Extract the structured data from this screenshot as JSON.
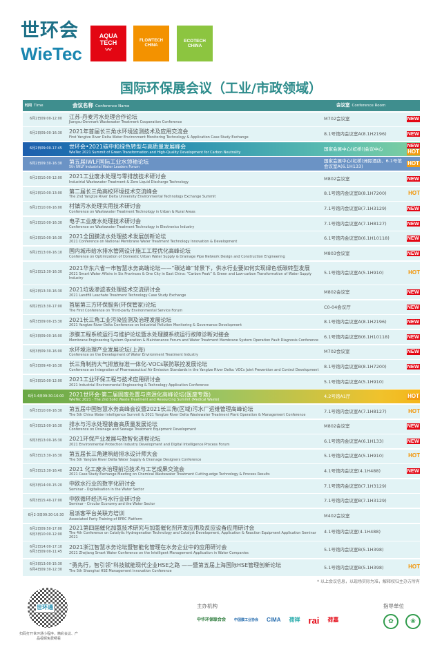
{
  "header": {
    "logo_cn": "世环会",
    "logo_en": "WieTec",
    "brands": [
      {
        "line1": "AQUA",
        "line2": "TECH",
        "color": "#e30613"
      },
      {
        "line1": "FLOWTECH",
        "line2": "CHINA",
        "color": "#f39200"
      },
      {
        "line1": "ECOTECH",
        "line2": "CHINA",
        "color": "#8cc540"
      }
    ]
  },
  "title": "国际环保展会议（工业/市政领域）",
  "columns": {
    "time_cn": "时间",
    "time_en": "Time",
    "name_cn": "会议名称",
    "name_en": "Conference Name",
    "room_cn": "会议室",
    "room_en": "Conference Room"
  },
  "badges": {
    "new": "NEW",
    "hot": "HOT"
  },
  "rows": [
    {
      "time": [
        "6月2日09:00-12:00"
      ],
      "cn": "江苏-丹麦污水处理合作论坛",
      "en": "Jiangsu-Denmark Wastewater Treatment Cooperation Conference",
      "room": "M702会议室",
      "badges": [
        "new"
      ]
    },
    {
      "time": [
        "6月2日09:00-16:30"
      ],
      "cn": "2021年首届长三角水环境监测技术及应用交流会",
      "en": "First Yangtze River Delta Water Environment Monitoring Technology & Application Case Study Exchange",
      "room": "8.1号馆内会议室A(8.1H2196)",
      "badges": [
        "new"
      ]
    },
    {
      "time": [
        "6月2日09:00-17:45"
      ],
      "cn": "世环会•2021碳中和绿色转型与高质量发展峰会",
      "en": "WieTec 2021 Summit of Green Transformation and High-Quality Development for Carbon Neutrality",
      "room": "国家会展中心(虹桥)|会议中心",
      "badges": [
        "new",
        "hot"
      ],
      "style": "hl1"
    },
    {
      "time": [
        "6月2日09:30-16:30"
      ],
      "cn": "第五届IWLF国际工业水领袖论坛",
      "en": "5th IWLF Industrial Water Leaders Forum",
      "room": "国家会展中心(虹桥)洲际酒店、6.1号馆会议室A(6.1H133)",
      "badges": [
        "hot"
      ],
      "style": "hl2"
    },
    {
      "time": [
        "6月2日10:00-12:00"
      ],
      "cn": "2021工业废水处理与零排放技术研讨会",
      "en": "Industrial Wastewater Treatment & Zero Liquid Discharge Technology",
      "room": "M802会议室",
      "badges": [
        "new"
      ]
    },
    {
      "time": [
        "6月2日10:00-13:00"
      ],
      "cn": "第二届长三角高校环境技术交流峰会",
      "en": "The 2nd Yangtze River Delta University Environmental Technology Exchange Summit",
      "room": "8.1号馆内会议室B(8.1H7200)",
      "badges": [
        "hot"
      ]
    },
    {
      "time": [
        "6月2日10:00-16:00"
      ],
      "cn": "村镇污水处理实用技术研讨会",
      "en": "Conference on Wastewater Treatment Technology in Urban & Rural Areas",
      "room": "7.1号馆内会议室B(7.1H3129)",
      "badges": [
        "new"
      ]
    },
    {
      "time": [
        "6月2日10:00-16:30"
      ],
      "cn": "电子工业废水处理技术研讨会",
      "en": "Conference on Wastewater Treatment Technology in Electronics Industry",
      "room": "7.1号馆内会议室A(7.1H8127)",
      "badges": [
        "new"
      ]
    },
    {
      "time": [
        "6月2日10:00-16:30"
      ],
      "cn": "2021全国膜法水处理技术发展创新论坛",
      "en": "2021 Conference on National Membrane Water Treatment Technology Innovation & Development",
      "room": "6.1号馆内会议室B(6.1H10118)",
      "badges": [
        "new"
      ]
    },
    {
      "time": [
        "6月2日13:00-16:10"
      ],
      "cn": "国内城市给水排水管网设计施工工程优化高峰论坛",
      "en": "Conference on Optimization of Domestic Urban Water Supply & Drainage Pipe Network Design and Construction Engineering",
      "room": "M803会议室",
      "badges": [
        "new"
      ]
    },
    {
      "time": [
        "6月2日13:30-16:30"
      ],
      "cn": "2021华东六省一市智慧水务高端论坛——“碳达峰”背景下，供水行业要如何实现绿色低碳转型发展",
      "en": "2021 Smart Water Affairs in Six Provinces & One City in East China: “Carbon Peak” & Green and Low-carbon Transformation of Water Supply Industry",
      "room": "5.1号馆内会议室A(5.1H910)",
      "badges": [
        "hot"
      ],
      "tall": true
    },
    {
      "time": [
        "6月2日13:30-16:30"
      ],
      "cn": "2021垃圾渗滤液处理技术交流研讨会",
      "en": "2021 Landfill Leachate Treatment Technology Case Study Exchange",
      "room": "M802会议室",
      "badges": [
        "new"
      ]
    },
    {
      "time": [
        "6月2日13:30-17:00"
      ],
      "cn": "首届第三方环保服务(环保管家)论坛",
      "en": "The First Conference on Third-party Environmental Service Forum",
      "room": "C0-04会议厅",
      "badges": [
        "new"
      ]
    },
    {
      "time": [
        "6月3日09:00-15:30"
      ],
      "cn": "2021长三角工业污染监测及治理发展论坛",
      "en": "2021 Yangtze River Delta Conference on Industrial Pollution Monitoring & Governance Development",
      "room": "8.1号馆内会议室A(8.1H2196)",
      "badges": [
        "new"
      ]
    },
    {
      "time": [
        "6月3日09:00-16:00"
      ],
      "cn": "涉膜工程系统运行与维护论坛暨水处理膜系统运行故障诊断对接会",
      "en": "Membrane Engineering System Operation & Maintenance Forum and Water Treatment Membrane System Operation Fault Diagnosis Conference",
      "room": "6.1号馆内会议室B(6.1H10118)",
      "badges": [
        "new"
      ]
    },
    {
      "time": [
        "6月3日09:30-16:00"
      ],
      "cn": "水环境治理产业发展论坛(上海)",
      "en": "Conference on the Development of Water Environment Treatment Industry",
      "room": "M702会议室",
      "badges": [
        "new"
      ]
    },
    {
      "time": [
        "6月3日09:40-16:30"
      ],
      "cn": "长三角制药大气排放标准一体化-VOCs联防联控发展论坛",
      "en": "Conference on Integration of Pharmaceutical Air Emission Standards in the Yangtze River Delta: VOCs Joint Prevention and Control Development",
      "room": "8.1号馆内会议室B(8.1H7200)",
      "badges": [
        "new"
      ]
    },
    {
      "time": [
        "6月3日10:00-12:00"
      ],
      "cn": "2021工业环保工程与技术应用研讨会",
      "en": "2021 Industrial Environmental Engineering & Technology Application Conference",
      "room": "5.1号馆内会议室A(5.1H910)",
      "badges": []
    },
    {
      "time": [
        "6月3-4日09:30-16:00"
      ],
      "cn": "2021世环会·第二届固废处置与资源化高峰论坛(医废专题)",
      "en": "WieTec 2021 · The 2nd Solid Waste Treatment and Resourcing Summit (Medical Waste)",
      "room": "4.2号馆A1厅",
      "badges": [
        "hot"
      ],
      "style": "hl3"
    },
    {
      "time": [
        "6月3日10:00-16:30"
      ],
      "cn": "第五届中国智慧水务高峰会议暨2021长三角(区域)污水厂运维管理高峰论坛",
      "en": "The 5th China Water Intelligence Summit & 2021 Yangtze River Delta Wastewater Treatment Plant Operation & Management Conference",
      "room": "7.1号馆内会议室A(7.1H8127)",
      "badges": [
        "hot"
      ]
    },
    {
      "time": [
        "6月3日13:00-16:30"
      ],
      "cn": "排水与污水处理装备高质量发展论坛",
      "en": "Conference on Drainage and Sewage Treatment Equipment Development",
      "room": "M802会议室",
      "badges": [
        "new"
      ]
    },
    {
      "time": [
        "6月3日13:00-16:30"
      ],
      "cn": "2021环保产业发展与数智化进程论坛",
      "en": "2021 Environmental Protection Industry Development and Digital Intelligence Process Forum",
      "room": "6.1号馆内会议室A(6.1H133)",
      "badges": [
        "new"
      ]
    },
    {
      "time": [
        "6月3日13:30-16:30"
      ],
      "cn": "第五届长三角建筑给排水设计师大会",
      "en": "The 5th Yangtze River Delta Water Supply & Drainage Designers Conference",
      "room": "5.1号馆内会议室A(5.1H910)",
      "badges": [
        "hot"
      ]
    },
    {
      "time": [
        "6月3日13:30-16:40"
      ],
      "cn": "2021 化工废水治理前沿技术与工艺成果交流会",
      "en": "2021 Case Study Exchange Meeting on Chemical Wastewater Treatment Cutting-edge Technology & Process Results",
      "room": "4.1号馆内会议室(4.1H488)",
      "badges": [
        "new"
      ]
    },
    {
      "time": [
        "6月3日14:00-15:20"
      ],
      "cn": "中欧水行业的数字化研讨会",
      "en": "Seminar - Digitalisation in the Water Sector",
      "room": "7.1号馆内会议室B(7.1H3129)",
      "badges": []
    },
    {
      "time": [
        "6月3日15:40-17:00"
      ],
      "cn": "中欧循环经济与水行业研讨会",
      "en": "Seminar - Circular Economy and the Water Sector",
      "room": "7.1号馆内会议室B(7.1H3129)",
      "badges": []
    },
    {
      "time": [
        "6月2-3日09:30-16:30"
      ],
      "cn": "易派客平台关联方培训",
      "en": "Associated Party Training of EPEC Platform",
      "room": "M402会议室",
      "badges": []
    },
    {
      "time": [
        "6月2日09:50-17:00",
        "6月3日10:00-12:00"
      ],
      "cn": "2021第四届催化加氢技术研究与加氢催化剂开发应用及反应设备应用研讨会",
      "en": "The 4th Conference on Catalytic Hydrogenation Technology and Catalyst Development, Application & Reaction Equipment Application Seminar 2021",
      "room": "4.1号馆内会议室(4.1H488)",
      "badges": []
    },
    {
      "time": [
        "6月2日14:00-17:10",
        "6月3日09:00-11:45"
      ],
      "cn": "2021浙江智慧水务论坛暨智能化管理在水务企业中的应用研讨会",
      "en": "2021 Zhejiang Smart Water Conference on the Intelligent Management Application in Water Companies",
      "room": "5.1号馆内会议室B(5.1H398)",
      "badges": []
    },
    {
      "time": [
        "6月3日13:00-15:30",
        "6月4日09:30-12:30"
      ],
      "cn": "“勇先行，智引领”科技赋能现代企业HSE之路 ——暨第五届上海国际HSE管理创新论坛",
      "en": "The 5th Shanghai HSE Management Innovation Conference",
      "room": "5.1号馆内会议室B(5.1H398)",
      "badges": [
        "hot"
      ]
    }
  ],
  "footer": {
    "note": "* 以上会议信息，以现场实际为准，解释权归主办方所有",
    "qr_label": "世环通",
    "qr_caption": "扫码打开世环通小程序，精彩会议、产品视频免费畅看",
    "organizers_label": "主办机构",
    "organizers": [
      "中华环保联合会",
      "中国膜工业协会",
      "CIMA",
      "荷祥",
      "rai",
      "荷嘉"
    ],
    "guides_label": "指导单位"
  },
  "colors": {
    "accent": "#3f8e8e",
    "new": "#e30613",
    "hot": "#f39200",
    "row_bg": "#e2f3f5"
  }
}
